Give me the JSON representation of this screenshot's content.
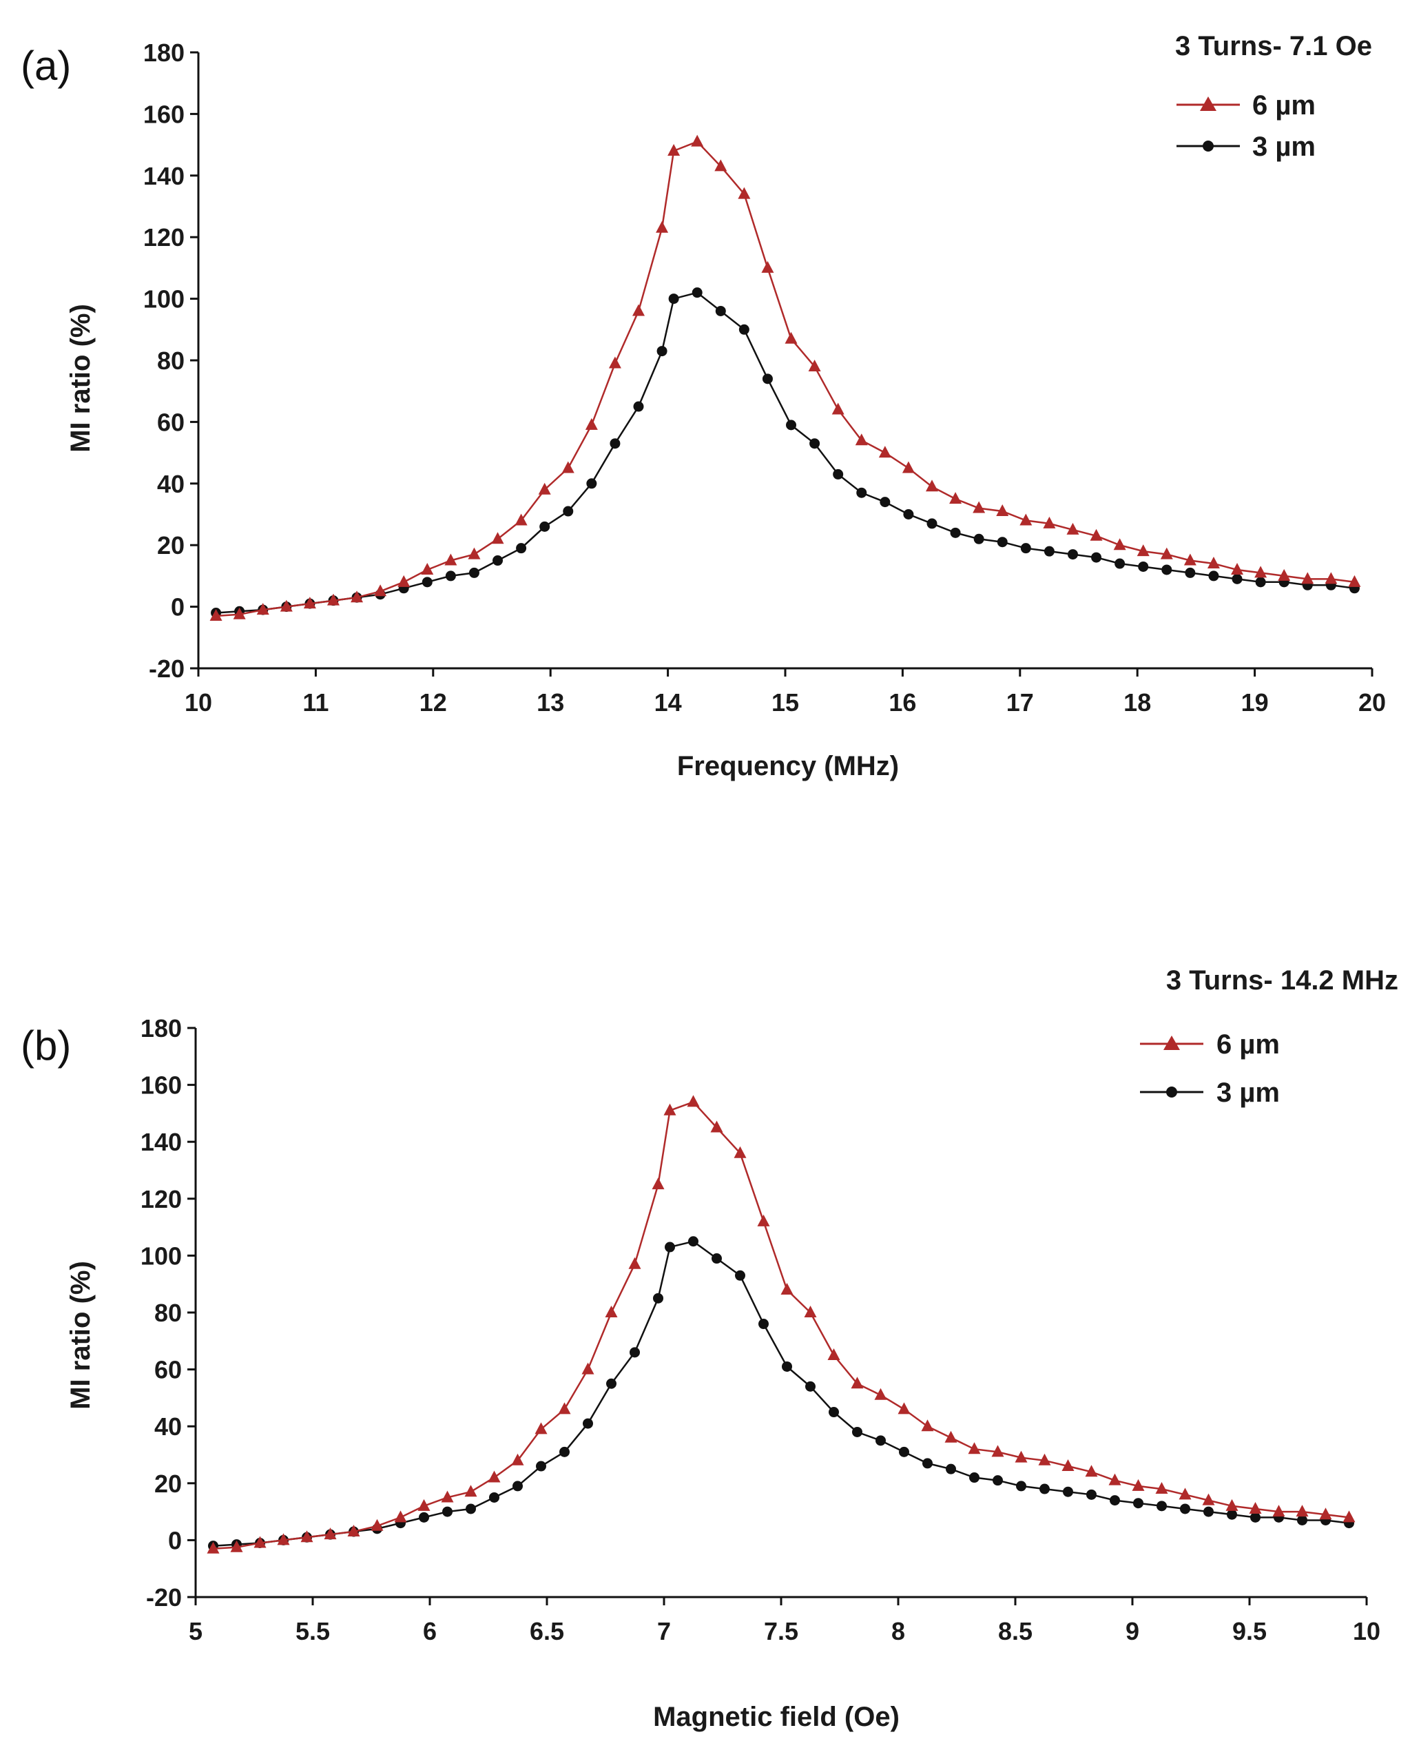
{
  "chart_data": [
    {
      "type": "line",
      "panel_label": "(a)",
      "condition": "3 Turns- 7.1 Oe",
      "xlabel": "Frequency (MHz)",
      "ylabel": "MI ratio (%)",
      "xlim": [
        10,
        20
      ],
      "ylim": [
        -20,
        180
      ],
      "xticks": [
        "10",
        "11",
        "12",
        "13",
        "14",
        "15",
        "16",
        "17",
        "18",
        "19",
        "20"
      ],
      "yticks": [
        "-20",
        "0",
        "20",
        "40",
        "60",
        "80",
        "100",
        "120",
        "140",
        "160",
        "180"
      ],
      "x": [
        10.15,
        10.35,
        10.55,
        10.75,
        10.95,
        11.15,
        11.35,
        11.55,
        11.75,
        11.95,
        12.15,
        12.35,
        12.55,
        12.75,
        12.95,
        13.15,
        13.35,
        13.55,
        13.75,
        13.95,
        14.05,
        14.25,
        14.45,
        14.65,
        14.85,
        15.05,
        15.25,
        15.45,
        15.65,
        15.85,
        16.05,
        16.25,
        16.45,
        16.65,
        16.85,
        17.05,
        17.25,
        17.45,
        17.65,
        17.85,
        18.05,
        18.25,
        18.45,
        18.65,
        18.85,
        19.05,
        19.25,
        19.45,
        19.65,
        19.85
      ],
      "series": [
        {
          "name": "6 µm",
          "color": "#b02a2a",
          "marker": "triangle",
          "values": [
            -3,
            -2.5,
            -1,
            0,
            1,
            2,
            3,
            5,
            8,
            12,
            15,
            17,
            22,
            28,
            38,
            45,
            59,
            79,
            96,
            123,
            148,
            151,
            143,
            134,
            110,
            87,
            78,
            64,
            54,
            50,
            45,
            39,
            35,
            32,
            31,
            28,
            27,
            25,
            23,
            20,
            18,
            17,
            15,
            14,
            12,
            11,
            10,
            9,
            9,
            8
          ]
        },
        {
          "name": "3 µm",
          "color": "#111111",
          "marker": "circle",
          "values": [
            -2,
            -1.5,
            -1,
            0,
            1,
            2,
            3,
            4,
            6,
            8,
            10,
            11,
            15,
            19,
            26,
            31,
            40,
            53,
            65,
            83,
            100,
            102,
            96,
            90,
            74,
            59,
            53,
            43,
            37,
            34,
            30,
            27,
            24,
            22,
            21,
            19,
            18,
            17,
            16,
            14,
            13,
            12,
            11,
            10,
            9,
            8,
            8,
            7,
            7,
            6
          ]
        }
      ]
    },
    {
      "type": "line",
      "panel_label": "(b)",
      "condition": "3 Turns- 14.2 MHz",
      "xlabel": "Magnetic field  (Oe)",
      "ylabel": "MI ratio (%)",
      "xlim": [
        5,
        10
      ],
      "ylim": [
        -20,
        180
      ],
      "xticks": [
        "5",
        "5.5",
        "6",
        "6.5",
        "7",
        "7.5",
        "8",
        "8.5",
        "9",
        "9.5",
        "10"
      ],
      "yticks": [
        "-20",
        "0",
        "20",
        "40",
        "60",
        "80",
        "100",
        "120",
        "140",
        "160",
        "180"
      ],
      "x": [
        5.075,
        5.175,
        5.275,
        5.375,
        5.475,
        5.575,
        5.675,
        5.775,
        5.875,
        5.975,
        6.075,
        6.175,
        6.275,
        6.375,
        6.475,
        6.575,
        6.675,
        6.775,
        6.875,
        6.975,
        7.025,
        7.125,
        7.225,
        7.325,
        7.425,
        7.525,
        7.625,
        7.725,
        7.825,
        7.925,
        8.025,
        8.125,
        8.225,
        8.325,
        8.425,
        8.525,
        8.625,
        8.725,
        8.825,
        8.925,
        9.025,
        9.125,
        9.225,
        9.325,
        9.425,
        9.525,
        9.625,
        9.725,
        9.825,
        9.925
      ],
      "series": [
        {
          "name": "6 µm",
          "color": "#b02a2a",
          "marker": "triangle",
          "values": [
            -3,
            -2.5,
            -1,
            0,
            1,
            2,
            3,
            5,
            8,
            12,
            15,
            17,
            22,
            28,
            39,
            46,
            60,
            80,
            97,
            125,
            151,
            154,
            145,
            136,
            112,
            88,
            80,
            65,
            55,
            51,
            46,
            40,
            36,
            32,
            31,
            29,
            28,
            26,
            24,
            21,
            19,
            18,
            16,
            14,
            12,
            11,
            10,
            10,
            9,
            8
          ]
        },
        {
          "name": "3 µm",
          "color": "#111111",
          "marker": "circle",
          "values": [
            -2,
            -1.5,
            -1,
            0,
            1,
            2,
            3,
            4,
            6,
            8,
            10,
            11,
            15,
            19,
            26,
            31,
            41,
            55,
            66,
            85,
            103,
            105,
            99,
            93,
            76,
            61,
            54,
            45,
            38,
            35,
            31,
            27,
            25,
            22,
            21,
            19,
            18,
            17,
            16,
            14,
            13,
            12,
            11,
            10,
            9,
            8,
            8,
            7,
            7,
            6
          ]
        }
      ]
    }
  ]
}
